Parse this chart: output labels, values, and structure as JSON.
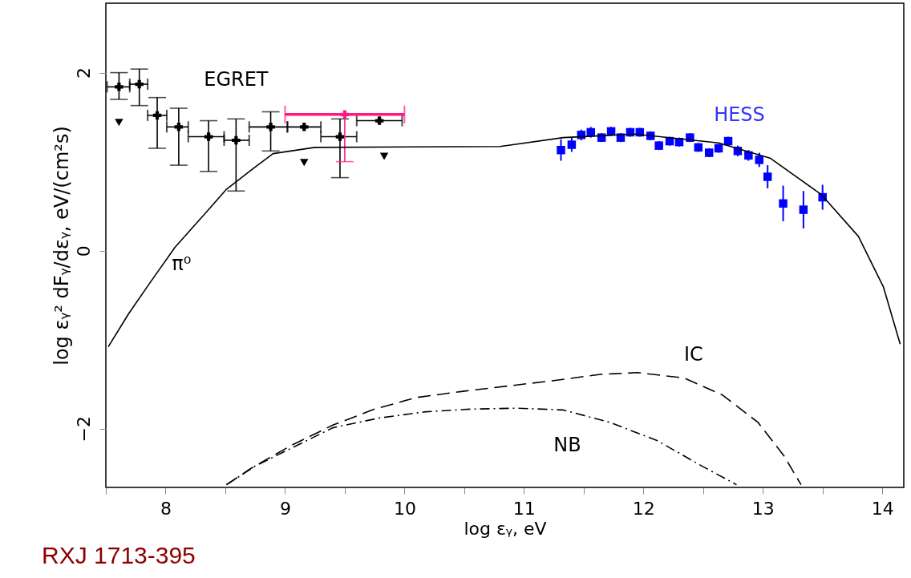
{
  "chart_data": {
    "type": "scatter",
    "xlabel": "log εᵧ, eV",
    "ylabel": "log εᵧ² dFᵧ/dεᵧ, eV/(cm²s)",
    "xlim": [
      7.5,
      14.18
    ],
    "ylim": [
      -2.66,
      2.78
    ],
    "xticks": [
      {
        "value": 7.5,
        "label": null
      },
      8,
      {
        "value": 8.5,
        "label": null
      },
      9,
      {
        "value": 9.5,
        "label": null
      },
      10,
      {
        "value": 10.5,
        "label": null
      },
      11,
      {
        "value": 11.5,
        "label": null
      },
      12,
      {
        "value": 12.5,
        "label": null
      },
      13,
      {
        "value": 13.5,
        "label": null
      },
      14
    ],
    "yticks": [
      {
        "value": -2,
        "label": "−2"
      },
      0,
      2
    ],
    "grid": false,
    "series": [
      {
        "name": "EGRET",
        "type": "scatter",
        "color": "#000000",
        "marker": "cross",
        "x": [
          7.61,
          7.78,
          7.93,
          8.11,
          8.36,
          8.59,
          8.88,
          9.16,
          9.46,
          9.79
        ],
        "values": [
          1.84,
          1.87,
          1.52,
          1.39,
          1.28,
          1.24,
          1.39,
          1.39,
          1.28,
          1.46
        ],
        "errors": [
          [
            1.7,
            2.0
          ],
          [
            1.63,
            2.04
          ],
          [
            1.15,
            1.72
          ],
          [
            0.96,
            1.6
          ],
          [
            0.89,
            1.46
          ],
          [
            0.67,
            1.48
          ],
          [
            1.12,
            1.56
          ],
          null,
          [
            0.82,
            1.48
          ],
          null
        ],
        "xerrors": [
          [
            7.51,
            7.7
          ],
          [
            7.7,
            7.85
          ],
          [
            7.85,
            8.01
          ],
          [
            8.01,
            8.19
          ],
          [
            8.19,
            8.49
          ],
          [
            8.49,
            8.7
          ],
          [
            8.7,
            9.02
          ],
          [
            9.02,
            9.3
          ],
          [
            9.3,
            9.6
          ],
          [
            9.6,
            9.98
          ]
        ]
      },
      {
        "color": "#000000",
        "marker": "triangle",
        "x": [
          7.61,
          9.16,
          9.83
        ],
        "values": [
          1.44,
          0.99,
          1.06
        ]
      },
      {
        "color": "#ff1a7f",
        "marker": "cross",
        "x": [
          9.5
        ],
        "values": [
          1.53
        ],
        "xerrors": [
          [
            9.0,
            10.0
          ]
        ],
        "errors": [
          [
            1.0,
            1.53
          ]
        ]
      },
      {
        "name": "HESS",
        "color": "#0000ff",
        "marker": "square",
        "x": [
          11.31,
          11.4,
          11.48,
          11.56,
          11.65,
          11.73,
          11.81,
          11.89,
          11.97,
          12.06,
          12.13,
          12.22,
          12.3,
          12.39,
          12.46,
          12.55,
          12.63,
          12.71,
          12.79,
          12.88,
          12.97,
          13.04,
          13.17,
          13.34,
          13.5
        ],
        "values": [
          1.13,
          1.19,
          1.3,
          1.33,
          1.27,
          1.34,
          1.27,
          1.33,
          1.33,
          1.29,
          1.18,
          1.23,
          1.22,
          1.27,
          1.16,
          1.1,
          1.15,
          1.23,
          1.12,
          1.07,
          1.02,
          0.83,
          0.53,
          0.46,
          0.6
        ],
        "errors": [
          0.12,
          0.08,
          0.06,
          0.06,
          0.05,
          0.05,
          0.05,
          0.05,
          0.05,
          0.05,
          0.05,
          0.05,
          0.05,
          0.05,
          0.05,
          0.05,
          0.05,
          0.05,
          0.06,
          0.06,
          0.08,
          0.13,
          0.2,
          0.21,
          0.14
        ]
      },
      {
        "name": "π⁰",
        "type": "line",
        "color": "#000000",
        "line_style": "solid",
        "x": [
          7.52,
          7.69,
          7.87,
          8.08,
          8.3,
          8.51,
          8.73,
          8.9,
          9.25,
          10.8,
          11.33,
          11.93,
          12.63,
          13.06,
          13.49,
          13.8,
          14.01,
          14.15
        ],
        "values": [
          -1.08,
          -0.71,
          -0.36,
          0.04,
          0.37,
          0.69,
          0.92,
          1.09,
          1.16,
          1.17,
          1.27,
          1.31,
          1.21,
          1.04,
          0.63,
          0.16,
          -0.41,
          -1.05
        ]
      },
      {
        "name": "IC",
        "type": "line",
        "color": "#000000",
        "line_style": "dashed",
        "x": [
          8.51,
          8.71,
          9.05,
          9.4,
          9.75,
          10.1,
          10.49,
          10.87,
          11.25,
          11.64,
          11.95,
          12.34,
          12.66,
          12.96,
          13.18,
          13.32
        ],
        "values": [
          -2.63,
          -2.45,
          -2.19,
          -1.96,
          -1.78,
          -1.65,
          -1.58,
          -1.52,
          -1.46,
          -1.39,
          -1.37,
          -1.43,
          -1.62,
          -1.93,
          -2.31,
          -2.63
        ]
      },
      {
        "name": "NB",
        "type": "line",
        "color": "#000000",
        "line_style": "dotted",
        "x": [
          8.51,
          8.75,
          9.4,
          9.79,
          10.18,
          10.56,
          10.95,
          11.33,
          11.72,
          12.11,
          12.49,
          12.78
        ],
        "values": [
          -2.63,
          -2.42,
          -1.99,
          -1.88,
          -1.81,
          -1.78,
          -1.77,
          -1.79,
          -1.93,
          -2.13,
          -2.42,
          -2.63
        ]
      }
    ],
    "annotations": [
      "RXJ 1713-395"
    ]
  }
}
